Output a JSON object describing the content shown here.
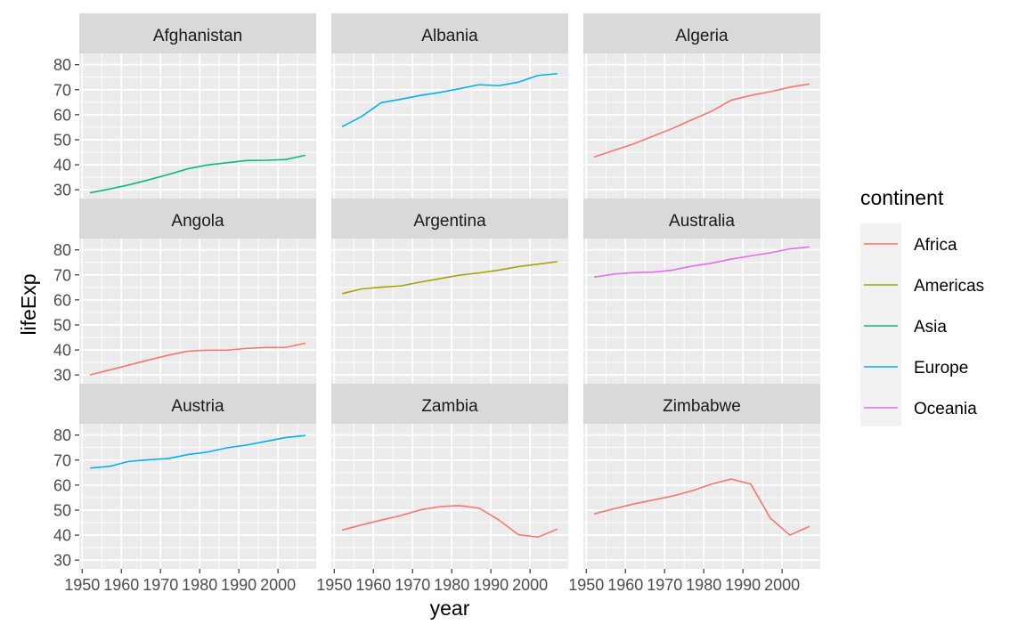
{
  "chart_data": {
    "type": "line",
    "xlabel": "year",
    "ylabel": "lifeExp",
    "xlim": [
      1949.25,
      2009.75
    ],
    "ylim": [
      26.5,
      84.5
    ],
    "x_ticks": [
      1950,
      1960,
      1970,
      1980,
      1990,
      2000
    ],
    "y_ticks": [
      30,
      40,
      50,
      60,
      70,
      80
    ],
    "grid": true,
    "legend": {
      "title": "continent",
      "position": "right",
      "entries": [
        {
          "name": "Africa",
          "color": "#F8766D"
        },
        {
          "name": "Americas",
          "color": "#A3A500"
        },
        {
          "name": "Asia",
          "color": "#00BF7D"
        },
        {
          "name": "Europe",
          "color": "#00B0F6"
        },
        {
          "name": "Oceania",
          "color": "#E76BF3"
        }
      ]
    },
    "years": [
      1952,
      1957,
      1962,
      1967,
      1972,
      1977,
      1982,
      1987,
      1992,
      1997,
      2002,
      2007
    ],
    "panels": [
      {
        "country": "Afghanistan",
        "continent": "Asia",
        "values": [
          28.8,
          30.3,
          32.0,
          34.0,
          36.1,
          38.4,
          39.9,
          40.8,
          41.7,
          41.8,
          42.1,
          43.8
        ]
      },
      {
        "country": "Albania",
        "continent": "Europe",
        "values": [
          55.2,
          59.3,
          64.8,
          66.2,
          67.7,
          68.9,
          70.4,
          72.0,
          71.6,
          73.0,
          75.7,
          76.4
        ]
      },
      {
        "country": "Algeria",
        "continent": "Africa",
        "values": [
          43.1,
          45.7,
          48.3,
          51.4,
          54.5,
          58.0,
          61.4,
          65.8,
          67.7,
          69.2,
          71.0,
          72.3
        ]
      },
      {
        "country": "Angola",
        "continent": "Africa",
        "values": [
          30.0,
          32.0,
          34.0,
          36.0,
          37.9,
          39.5,
          39.9,
          39.9,
          40.6,
          41.0,
          41.0,
          42.7
        ]
      },
      {
        "country": "Argentina",
        "continent": "Americas",
        "values": [
          62.5,
          64.4,
          65.1,
          65.6,
          67.1,
          68.5,
          69.9,
          70.8,
          71.9,
          73.3,
          74.3,
          75.3
        ]
      },
      {
        "country": "Australia",
        "continent": "Oceania",
        "values": [
          69.1,
          70.3,
          70.9,
          71.1,
          71.9,
          73.5,
          74.7,
          76.3,
          77.6,
          78.8,
          80.4,
          81.2
        ]
      },
      {
        "country": "Austria",
        "continent": "Europe",
        "values": [
          66.8,
          67.5,
          69.5,
          70.1,
          70.6,
          72.2,
          73.2,
          74.9,
          76.0,
          77.5,
          79.0,
          79.8
        ]
      },
      {
        "country": "Zambia",
        "continent": "Africa",
        "values": [
          42.0,
          44.1,
          46.0,
          47.8,
          50.1,
          51.4,
          51.8,
          50.8,
          46.1,
          40.2,
          39.2,
          42.4
        ]
      },
      {
        "country": "Zimbabwe",
        "continent": "Africa",
        "values": [
          48.5,
          50.5,
          52.4,
          54.0,
          55.6,
          57.7,
          60.4,
          62.4,
          60.4,
          46.8,
          40.0,
          43.5
        ]
      }
    ]
  }
}
